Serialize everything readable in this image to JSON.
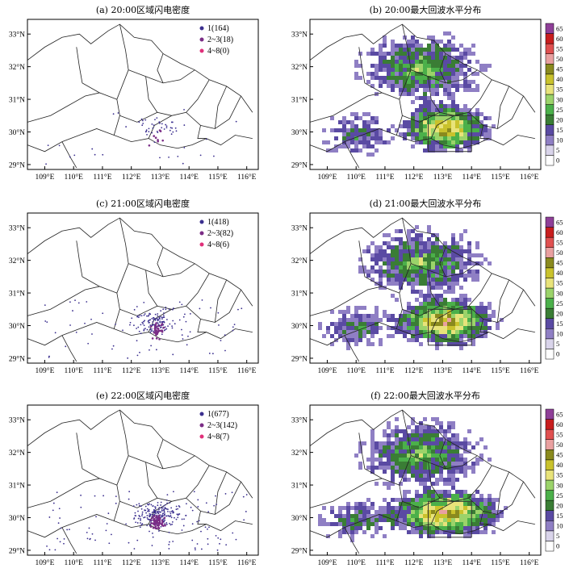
{
  "axes": {
    "lon_ticks": [
      "109°E",
      "110°E",
      "111°E",
      "112°E",
      "113°E",
      "114°E",
      "115°E",
      "116°E"
    ],
    "lat_ticks": [
      "29°N",
      "30°N",
      "31°N",
      "32°N",
      "33°N"
    ],
    "lon_range": [
      108.4,
      116.4
    ],
    "lat_range": [
      28.85,
      33.45
    ]
  },
  "colorbar": {
    "levels": [
      "0",
      "5",
      "10",
      "15",
      "20",
      "25",
      "30",
      "35",
      "40",
      "45",
      "50",
      "55",
      "60",
      "65"
    ],
    "colors": [
      "#ffffff",
      "#d9d4ea",
      "#8f7fc4",
      "#5a4aa3",
      "#3a7d35",
      "#4bb04a",
      "#9bd36a",
      "#e8e37a",
      "#c9c22c",
      "#8a8a1e",
      "#e9a0a0",
      "#e05050",
      "#c81e1e",
      "#8f3f98"
    ]
  },
  "panels": [
    {
      "id": "a",
      "title": "(a) 20:00区域闪电密度",
      "type": "lightning",
      "legend": [
        {
          "label": "1(164)",
          "color": "#3b2f8f"
        },
        {
          "label": "2~3(18)",
          "color": "#7b2d86"
        },
        {
          "label": "4~8(0)",
          "color": "#e0307a"
        }
      ]
    },
    {
      "id": "b",
      "title": "(b) 20:00最大回波水平分布",
      "type": "radar"
    },
    {
      "id": "c",
      "title": "(c) 21:00区域闪电密度",
      "type": "lightning",
      "legend": [
        {
          "label": "1(418)",
          "color": "#3b2f8f"
        },
        {
          "label": "2~3(82)",
          "color": "#7b2d86"
        },
        {
          "label": "4~8(6)",
          "color": "#e0307a"
        }
      ]
    },
    {
      "id": "d",
      "title": "(d) 21:00最大回波水平分布",
      "type": "radar"
    },
    {
      "id": "e",
      "title": "(e) 22:00区域闪电密度",
      "type": "lightning",
      "legend": [
        {
          "label": "1(677)",
          "color": "#3b2f8f"
        },
        {
          "label": "2~3(142)",
          "color": "#7b2d86"
        },
        {
          "label": "4~8(7)",
          "color": "#e0307a"
        }
      ]
    },
    {
      "id": "f",
      "title": "(f) 22:00最大回波水平分布",
      "type": "radar"
    }
  ]
}
